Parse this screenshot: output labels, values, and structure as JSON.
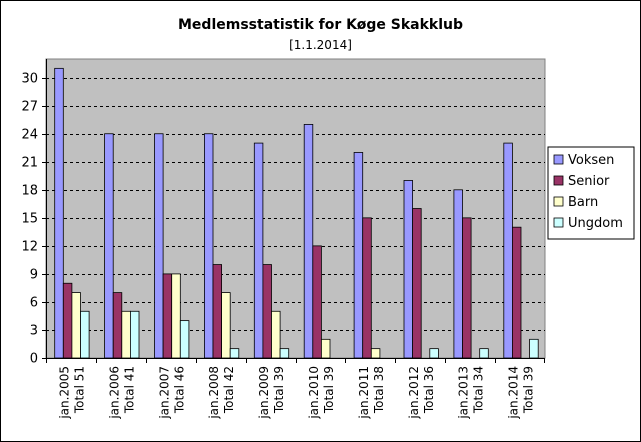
{
  "chart_data": {
    "type": "bar",
    "title": "Medlemsstatistik for Køge Skakklub",
    "subtitle": "[1.1.2014]",
    "xlabel": "",
    "ylabel": "",
    "ylim": [
      0,
      32
    ],
    "yticks": [
      0,
      3,
      6,
      9,
      12,
      15,
      18,
      21,
      24,
      27,
      30
    ],
    "grid": true,
    "legend_position": "right",
    "categories": [
      [
        "jan.2005",
        "Total 51"
      ],
      [
        "jan.2006",
        "Total 41"
      ],
      [
        "jan.2007",
        "Total 46"
      ],
      [
        "jan.2008",
        "Total 42"
      ],
      [
        "jan.2009",
        "Total 39"
      ],
      [
        "jan.2010",
        "Total 39"
      ],
      [
        "jan.2011",
        "Total 38"
      ],
      [
        "jan.2012",
        "Total 36"
      ],
      [
        "jan.2013",
        "Total 34"
      ],
      [
        "jan.2014",
        "Total 39"
      ]
    ],
    "series": [
      {
        "name": "Voksen",
        "color": "#9999ff",
        "values": [
          31,
          24,
          24,
          24,
          23,
          25,
          22,
          19,
          18,
          23
        ]
      },
      {
        "name": "Senior",
        "color": "#993366",
        "values": [
          8,
          7,
          9,
          10,
          10,
          12,
          15,
          16,
          15,
          14
        ]
      },
      {
        "name": "Barn",
        "color": "#ffffcc",
        "values": [
          7,
          5,
          9,
          7,
          5,
          2,
          1,
          0,
          0,
          0
        ]
      },
      {
        "name": "Ungdom",
        "color": "#ccffff",
        "values": [
          5,
          5,
          4,
          1,
          1,
          0,
          0,
          1,
          1,
          2
        ]
      }
    ],
    "plot_background": "#c0c0c0"
  }
}
